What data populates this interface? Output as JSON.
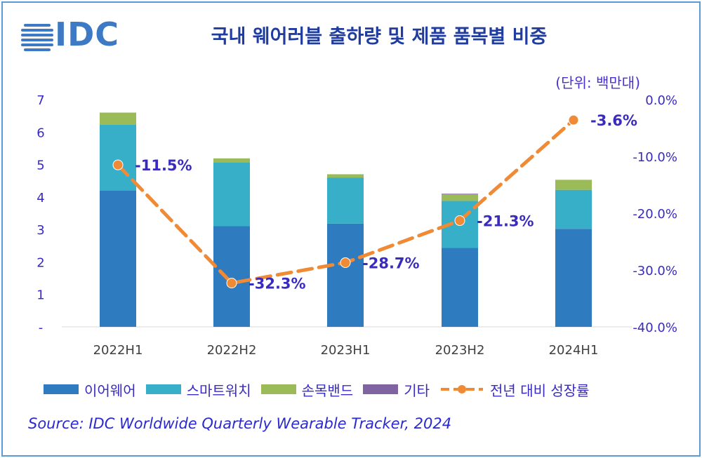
{
  "title": "국내 웨어러블 출하량 및 제품 품목별 비중",
  "unit": "(단위: 백만대)",
  "logo": "IDC",
  "source": "Source: IDC Worldwide Quarterly Wearable Tracker, 2024",
  "colors": {
    "earwear": "#2e7bbf",
    "smartwatch": "#38afc9",
    "wristband": "#9bbb59",
    "other": "#8064a2",
    "growth": "#f08a34",
    "label": "#3a2bc0"
  },
  "chart_data": {
    "type": "bar",
    "stacked": true,
    "categories": [
      "2022H1",
      "2022H2",
      "2023H1",
      "2023H2",
      "2024H1"
    ],
    "series": [
      {
        "name": "이어웨어",
        "values": [
          4.2,
          3.1,
          3.18,
          2.43,
          3.02
        ]
      },
      {
        "name": "스마트워치",
        "values": [
          2.03,
          1.97,
          1.42,
          1.45,
          1.2
        ]
      },
      {
        "name": "손목밴드",
        "values": [
          0.37,
          0.12,
          0.1,
          0.2,
          0.31
        ]
      },
      {
        "name": "기타",
        "values": [
          0.0,
          0.0,
          0.0,
          0.02,
          0.0
        ]
      }
    ],
    "line_series": {
      "name": "전년 대비 성장률",
      "values": [
        -11.5,
        -32.3,
        -28.7,
        -21.3,
        -3.6
      ],
      "labels": [
        "-11.5%",
        "-32.3%",
        "-28.7%",
        "-21.3%",
        "-3.6%"
      ]
    },
    "y_left": {
      "ylim": [
        0,
        7
      ],
      "ticks": [
        "-",
        "1",
        "2",
        "3",
        "4",
        "5",
        "6",
        "7"
      ]
    },
    "y_right": {
      "ylim": [
        -40,
        0
      ],
      "ticks": [
        "-40.0%",
        "-30.0%",
        "-20.0%",
        "-10.0%",
        "0.0%"
      ]
    },
    "legend_position": "bottom"
  }
}
